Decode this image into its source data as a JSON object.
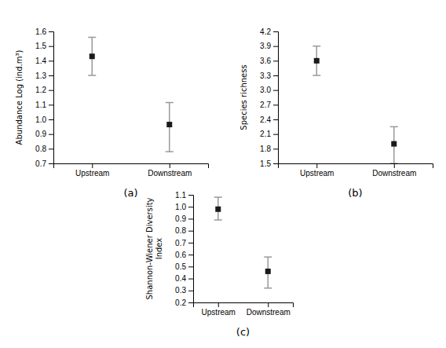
{
  "chart_data": [
    {
      "type": "errorbar",
      "title": "(a)",
      "ylabel": "Abundance Log (ind.m³)",
      "categories": [
        "Upstream",
        "Downstream"
      ],
      "values": [
        1.43,
        0.965
      ],
      "upper_errors": [
        0.13,
        0.15
      ],
      "lower_errors": [
        0.13,
        0.185
      ],
      "ylim": [
        0.7,
        1.6
      ],
      "yticks": [
        0.7,
        0.8,
        0.9,
        {
          "value": 1.0,
          "label": "1.0"
        },
        1.1,
        1.2,
        1.3,
        1.4,
        1.5,
        1.6
      ],
      "marker": "square",
      "color": "#1a1a1a",
      "grid": false
    },
    {
      "type": "errorbar",
      "title": "(b)",
      "ylabel": "Species richness",
      "categories": [
        "Upstream",
        "Downstream"
      ],
      "values": [
        3.6,
        1.9
      ],
      "upper_errors": [
        0.3,
        0.35
      ],
      "lower_errors": [
        0.3,
        0.4
      ],
      "ylim": [
        1.5,
        4.2
      ],
      "yticks": [
        1.5,
        1.8,
        2.1,
        2.4,
        2.7,
        {
          "value": 3.0,
          "label": "3.0"
        },
        3.3,
        3.6,
        3.9,
        4.2
      ],
      "marker": "square",
      "color": "#1a1a1a",
      "grid": false
    },
    {
      "type": "errorbar",
      "title": "(c)",
      "ylabel": "Shannon-Wiener Diversity\nIndex",
      "categories": [
        "Upstream",
        "Downstream"
      ],
      "values": [
        0.98,
        0.46
      ],
      "upper_errors": [
        0.1,
        0.12
      ],
      "lower_errors": [
        0.09,
        0.14
      ],
      "ylim": [
        0.2,
        1.1
      ],
      "yticks": [
        0.2,
        0.3,
        0.4,
        0.5,
        0.6,
        0.7,
        0.8,
        0.9,
        {
          "value": 1.0,
          "label": "1.0"
        },
        1.1
      ],
      "marker": "square",
      "color": "#1a1a1a",
      "grid": false
    }
  ]
}
